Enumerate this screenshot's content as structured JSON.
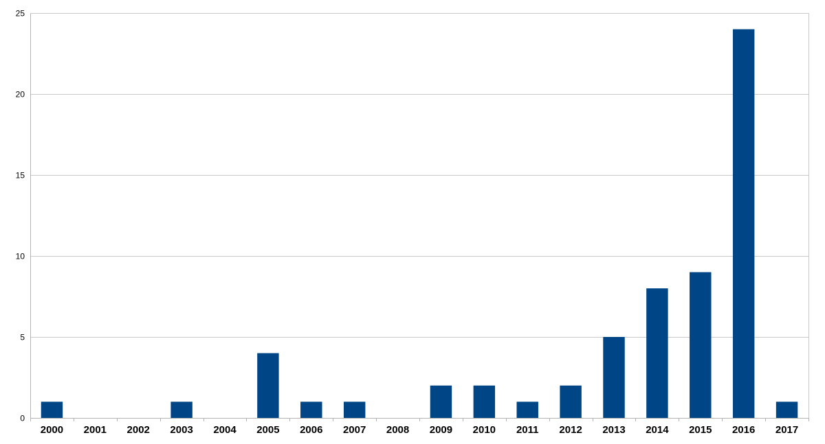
{
  "chart_data": {
    "type": "bar",
    "title": "",
    "xlabel": "",
    "ylabel": "",
    "categories": [
      "2000",
      "2001",
      "2002",
      "2003",
      "2004",
      "2005",
      "2006",
      "2007",
      "2008",
      "2009",
      "2010",
      "2011",
      "2012",
      "2013",
      "2014",
      "2015",
      "2016",
      "2017"
    ],
    "values": [
      1,
      0,
      0,
      1,
      0,
      4,
      1,
      1,
      0,
      2,
      2,
      1,
      2,
      5,
      8,
      9,
      24,
      1
    ],
    "ylim": [
      0,
      25
    ],
    "yticks": [
      "0",
      "5",
      "10",
      "15",
      "20",
      "25"
    ],
    "grid": true,
    "legend": "none",
    "colors": {
      "bar": "#004586"
    }
  }
}
